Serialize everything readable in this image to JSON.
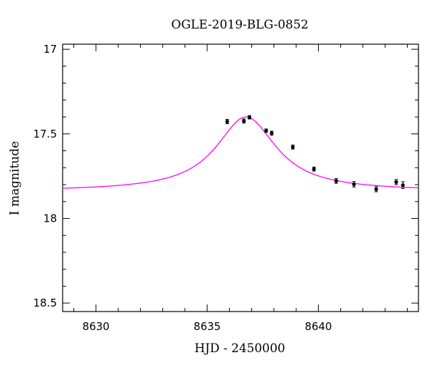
{
  "chart_data": {
    "type": "scatter",
    "title": "OGLE-2019-BLG-0852",
    "xlabel": "HJD - 2450000",
    "ylabel": "I magnitude",
    "xlim": [
      8628.5,
      8644.5
    ],
    "ylim": [
      18.55,
      16.97
    ],
    "y_inverted": true,
    "x_ticks": [
      8630,
      8635,
      8640
    ],
    "x_tick_labels": [
      "8630",
      "8635",
      "8640"
    ],
    "y_ticks": [
      17,
      17.5,
      18,
      18.5
    ],
    "y_tick_labels": [
      "17",
      "17.5",
      "18",
      "18.5"
    ],
    "grid": false,
    "series": [
      {
        "kind": "points",
        "color": "#000000",
        "points": [
          {
            "x": 8635.9,
            "y": 17.427,
            "err": 0.013
          },
          {
            "x": 8636.65,
            "y": 17.424,
            "err": 0.012
          },
          {
            "x": 8636.9,
            "y": 17.402,
            "err": 0.01
          },
          {
            "x": 8637.65,
            "y": 17.481,
            "err": 0.01
          },
          {
            "x": 8637.9,
            "y": 17.496,
            "err": 0.012
          },
          {
            "x": 8638.85,
            "y": 17.578,
            "err": 0.012
          },
          {
            "x": 8639.8,
            "y": 17.708,
            "err": 0.012
          },
          {
            "x": 8640.8,
            "y": 17.778,
            "err": 0.014
          },
          {
            "x": 8641.6,
            "y": 17.798,
            "err": 0.016
          },
          {
            "x": 8642.6,
            "y": 17.827,
            "err": 0.015
          },
          {
            "x": 8643.5,
            "y": 17.785,
            "err": 0.015
          },
          {
            "x": 8643.8,
            "y": 17.803,
            "err": 0.02
          }
        ]
      },
      {
        "kind": "model",
        "color": "#ff00ff",
        "t0": 8636.75,
        "width": 1.65,
        "baseline": 17.838,
        "peak": 17.4
      }
    ]
  }
}
